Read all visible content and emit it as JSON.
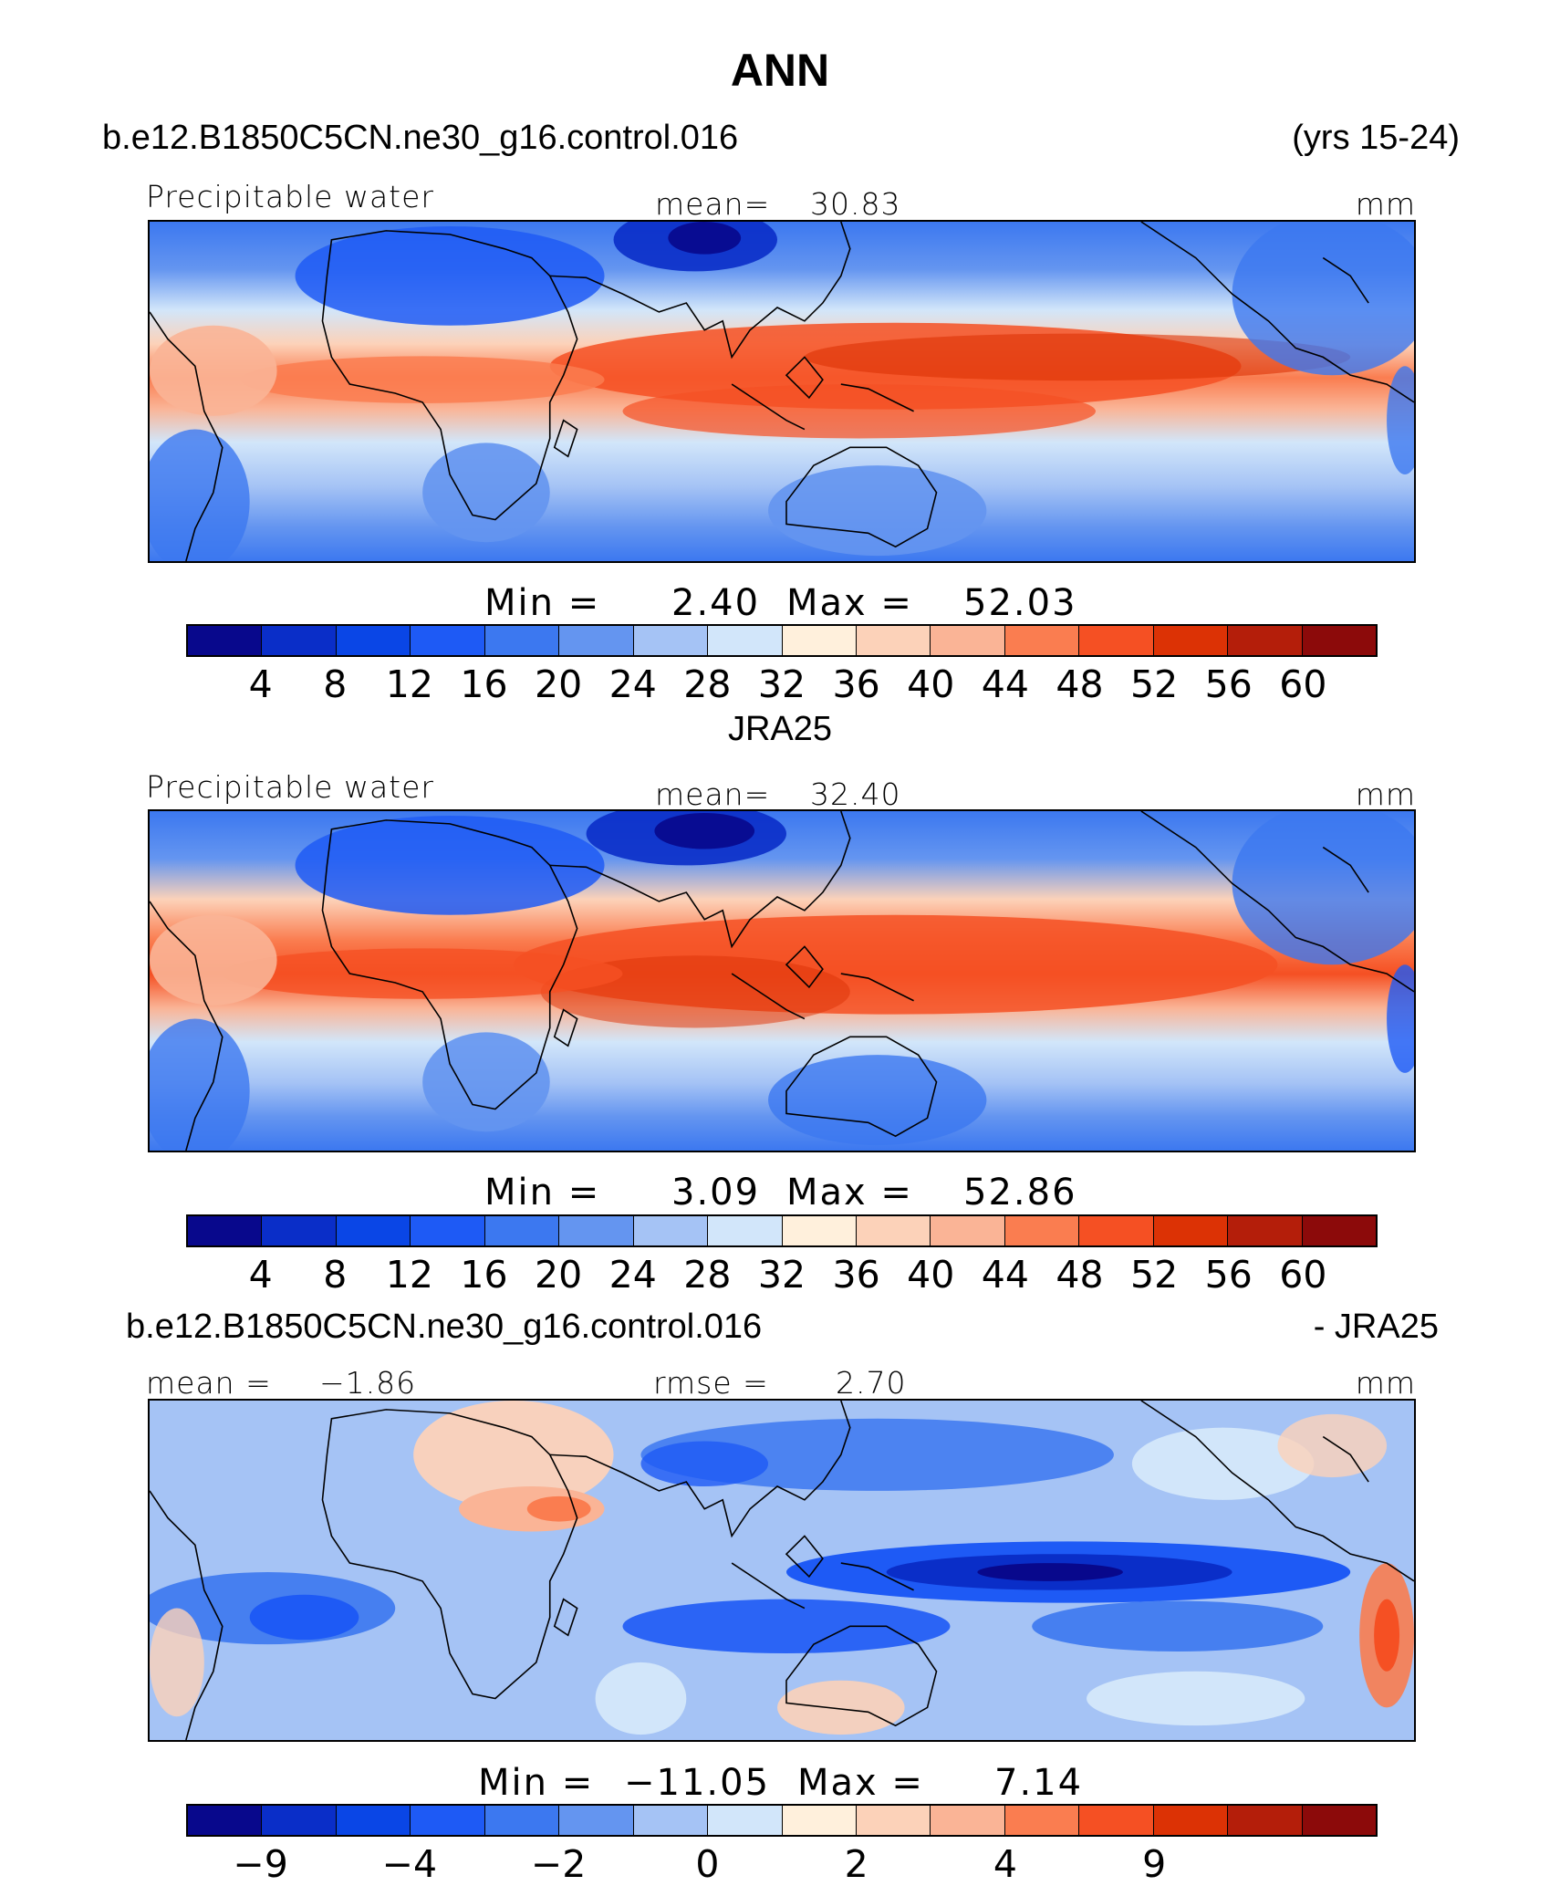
{
  "title": "ANN",
  "panel1": {
    "case": "b.e12.B1850C5CN.ne30_g16.control.016",
    "years": "(yrs 15-24)",
    "variable": "Precipitable water",
    "mean_label": "mean=",
    "mean_value": "30.83",
    "units": "mm",
    "min_label": "Min =",
    "min_value": "2.40",
    "max_label": "Max =",
    "max_value": "52.03"
  },
  "panel2": {
    "case": "JRA25",
    "variable": "Precipitable water",
    "mean_label": "mean=",
    "mean_value": "32.40",
    "units": "mm",
    "min_label": "Min =",
    "min_value": "3.09",
    "max_label": "Max =",
    "max_value": "52.86"
  },
  "panel3": {
    "case": "b.e12.B1850C5CN.ne30_g16.control.016",
    "minus": "- JRA25",
    "mean_label": "mean =",
    "mean_value": "−1.86",
    "rmse_label": "rmse =",
    "rmse_value": "2.70",
    "units": "mm",
    "min_label": "Min =",
    "min_value": "−11.05",
    "max_label": "Max =",
    "max_value": "7.14"
  },
  "colorbar_abs": {
    "colors": [
      "#08088c",
      "#0a2ec8",
      "#0a46e6",
      "#1e5af5",
      "#3c78f0",
      "#6495f0",
      "#a5c3f5",
      "#d2e6fa",
      "#fff0dc",
      "#fcd2b9",
      "#fab496",
      "#fa7d50",
      "#f55023",
      "#dc3205",
      "#b41e0a",
      "#8c0a0a"
    ],
    "ticks": [
      "4",
      "8",
      "12",
      "16",
      "20",
      "24",
      "28",
      "32",
      "36",
      "40",
      "44",
      "48",
      "52",
      "56",
      "60"
    ]
  },
  "colorbar_diff": {
    "colors": [
      "#08088c",
      "#0a2ec8",
      "#0a46e6",
      "#1e5af5",
      "#3c78f0",
      "#6495f0",
      "#a5c3f5",
      "#d2e6fa",
      "#fff0dc",
      "#fcd2b9",
      "#fab496",
      "#fa7d50",
      "#f55023",
      "#dc3205",
      "#b41e0a",
      "#8c0a0a"
    ],
    "ticks": [
      "−9",
      "",
      "−4",
      "",
      "−2",
      "",
      "0",
      "",
      "2",
      "",
      "4",
      "",
      "9"
    ],
    "tick_slots": [
      1,
      2,
      3,
      4,
      5,
      6,
      7,
      8,
      9,
      10,
      11,
      12,
      13
    ]
  }
}
